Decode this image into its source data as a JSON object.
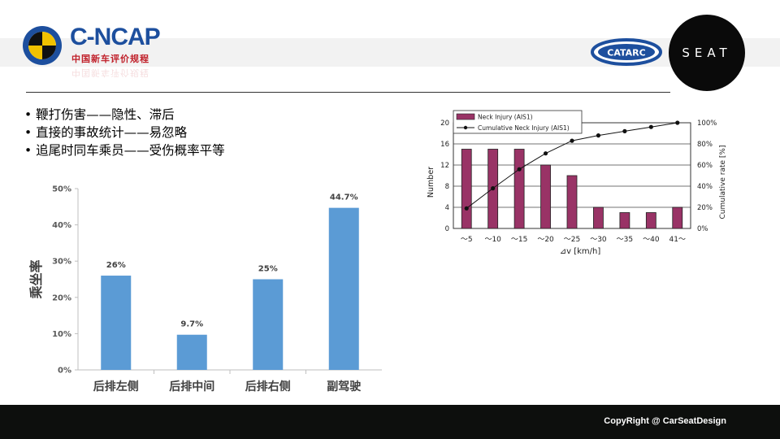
{
  "logos": {
    "cncap_text": "C-NCAP",
    "cncap_subtitle": "中国新车评价规程",
    "catarc_text": "CATARC",
    "seat_text": "SEAT"
  },
  "bullets": [
    "鞭打伤害——隐性、滞后",
    "直接的事故统计——易忽略",
    "追尾时同车乘员——受伤概率平等"
  ],
  "footer": {
    "copyright": "CopyRight  @ CarSeatDesign"
  },
  "colors": {
    "bar_blue": "#5b9bd5",
    "neck_bar": "#993366",
    "cncap_blue": "#1d4f9e",
    "cncap_red": "#c0202a",
    "footer_bg": "#0d0f0d"
  },
  "chart_data": [
    {
      "type": "bar",
      "categories": [
        "后排左侧",
        "后排中间",
        "后排右侧",
        "副驾驶"
      ],
      "values": [
        26,
        9.7,
        25,
        44.7
      ],
      "data_labels": [
        "26%",
        "9.7%",
        "25%",
        "44.7%"
      ],
      "ylabel": "乘坐率",
      "yticks": [
        "0%",
        "10%",
        "20%",
        "30%",
        "40%",
        "50%"
      ],
      "ylim": [
        0,
        50
      ],
      "grid": false
    },
    {
      "type": "bar",
      "categories": [
        "～5",
        "～10",
        "～15",
        "～20",
        "～25",
        "～30",
        "～35",
        "～40",
        "41～"
      ],
      "series": [
        {
          "name": "Neck Injury (AIS1)",
          "type": "bar",
          "values": [
            15,
            15,
            15,
            12,
            10,
            4,
            3,
            3,
            4
          ]
        },
        {
          "name": "Cumulative Neck Injury (AIS1)",
          "type": "line",
          "axis": "right",
          "values": [
            19,
            38,
            56,
            71,
            83,
            88,
            92,
            96,
            100
          ]
        }
      ],
      "xlabel": "⊿v [km/h]",
      "ylabel": "Number",
      "y2label": "Cumulative rate [%]",
      "yticks": [
        "0",
        "4",
        "8",
        "12",
        "16",
        "20"
      ],
      "y2ticks": [
        "0%",
        "20%",
        "40%",
        "60%",
        "80%",
        "100%"
      ],
      "ylim": [
        0,
        20
      ],
      "y2lim": [
        0,
        100
      ],
      "grid": true,
      "legend_position": "top"
    }
  ]
}
